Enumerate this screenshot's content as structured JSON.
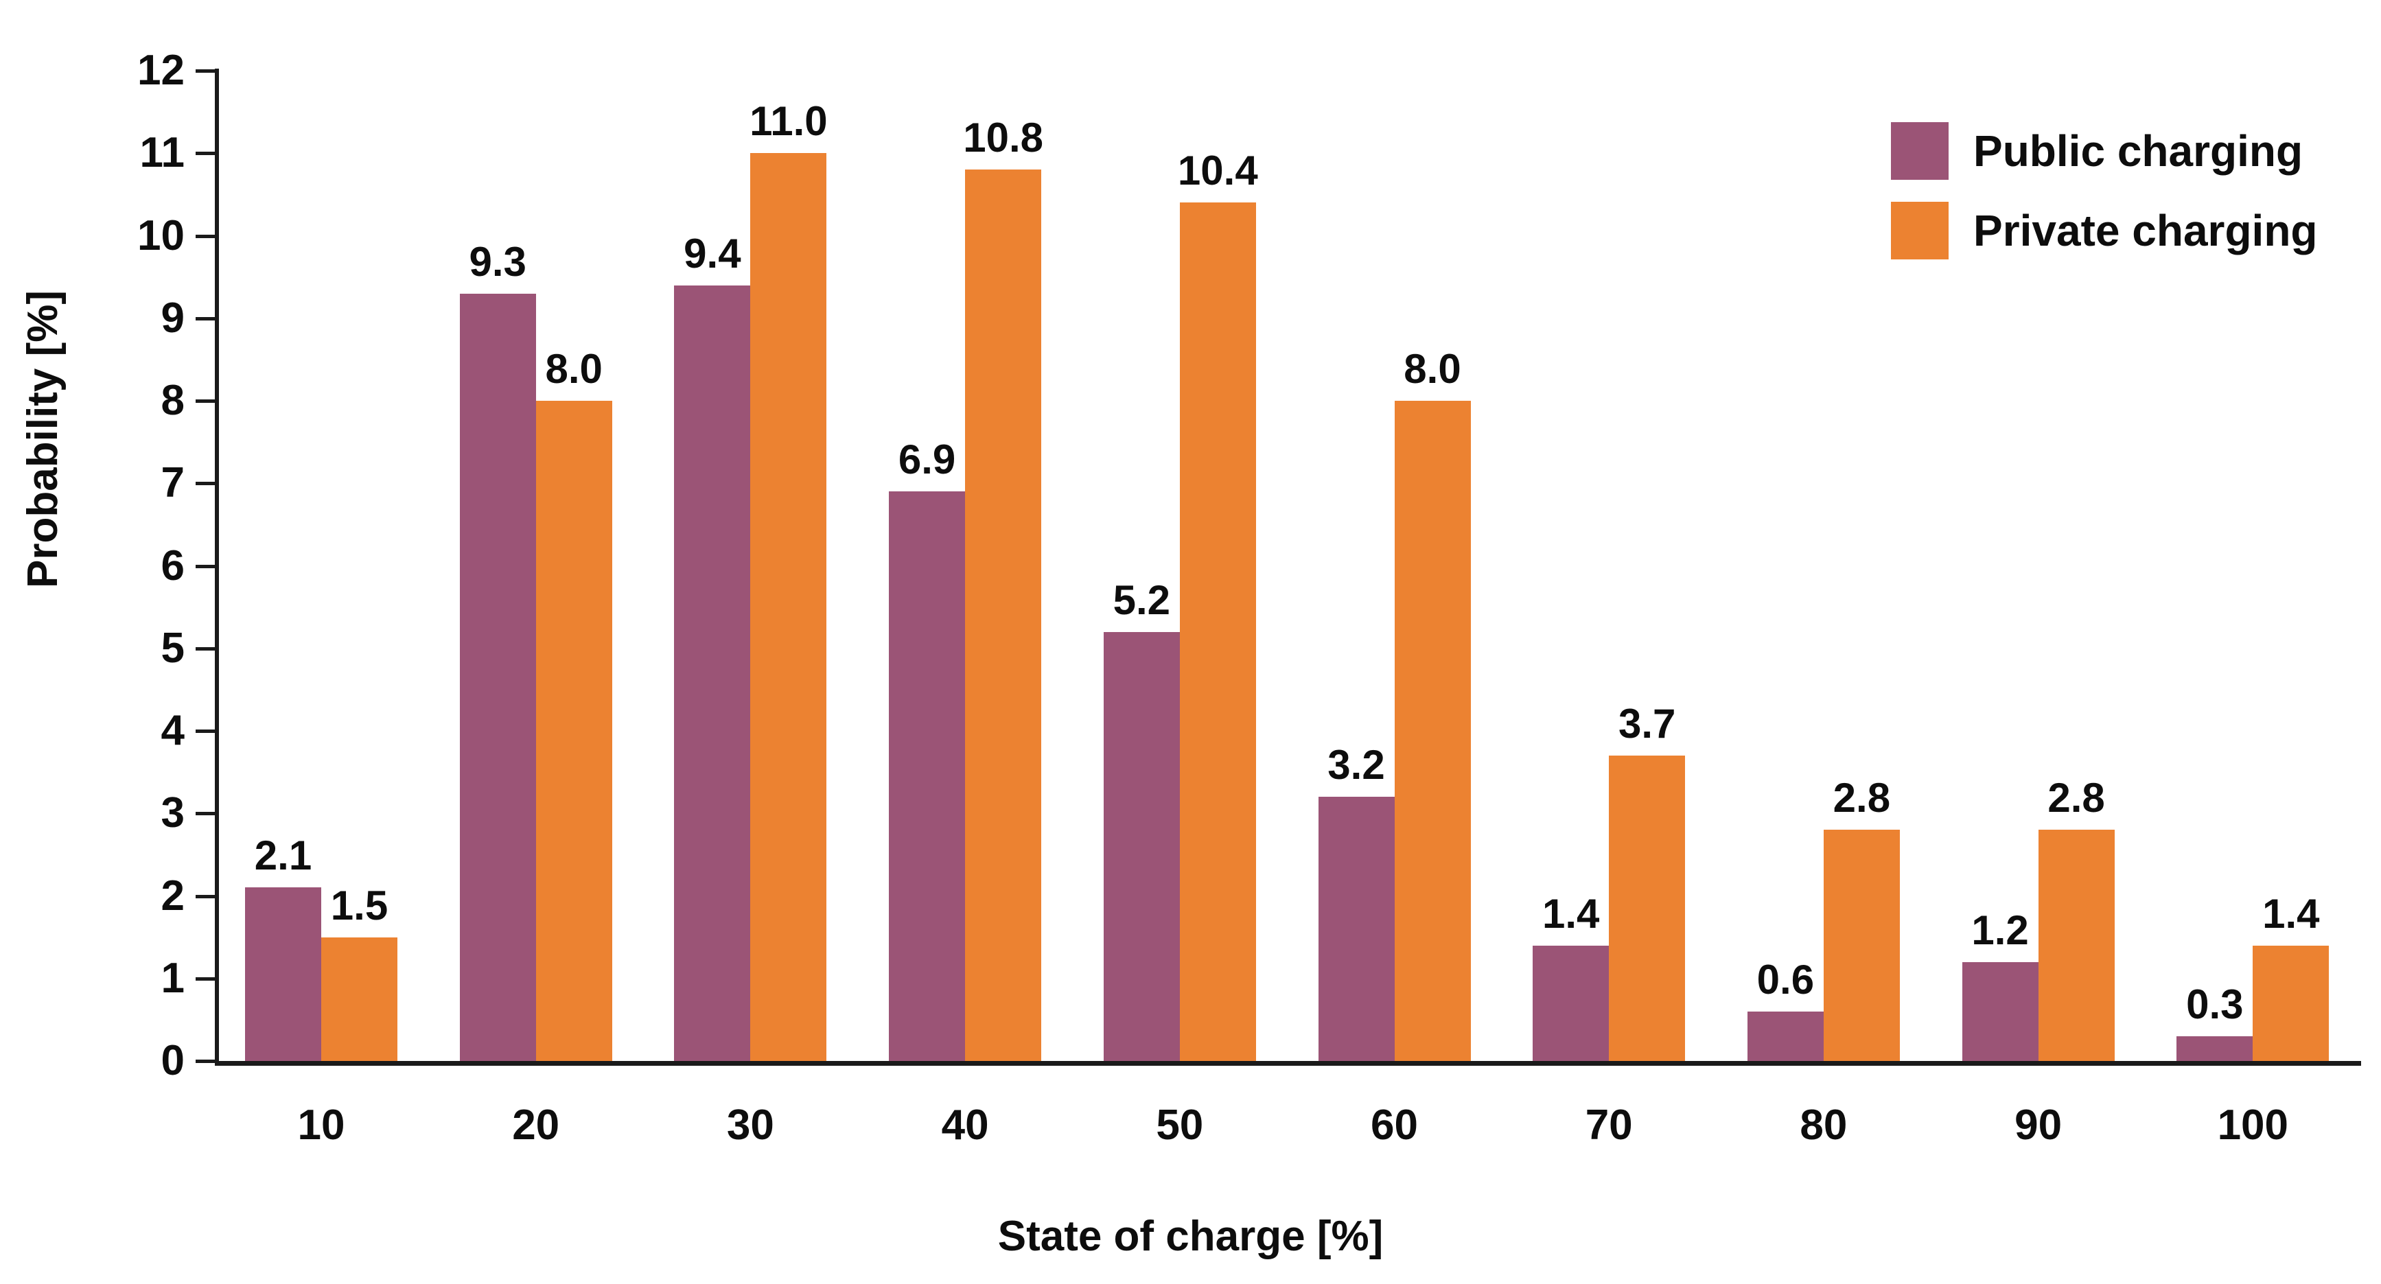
{
  "chart_data": {
    "type": "bar",
    "title": "",
    "xlabel": "State of charge [%]",
    "ylabel": "Probability [%]",
    "categories": [
      "10",
      "20",
      "30",
      "40",
      "50",
      "60",
      "70",
      "80",
      "90",
      "100"
    ],
    "series": [
      {
        "name": "Public charging",
        "color": "#9B5476",
        "values": [
          2.1,
          9.3,
          9.4,
          6.9,
          5.2,
          3.2,
          1.4,
          0.6,
          1.2,
          0.3
        ]
      },
      {
        "name": "Private charging",
        "color": "#EC8231",
        "values": [
          1.5,
          8.0,
          11.0,
          10.8,
          10.4,
          8.0,
          3.7,
          2.8,
          2.8,
          1.4
        ]
      }
    ],
    "ylim": [
      0,
      12
    ],
    "ytick_step": 1,
    "yticks": [
      0,
      1,
      2,
      3,
      4,
      5,
      6,
      7,
      8,
      9,
      10,
      11,
      12
    ],
    "grid": false,
    "legend_position": "top-right",
    "value_label_format": "one-decimal",
    "axis_color": "#1a1a1a",
    "background_color": "#ffffff"
  }
}
